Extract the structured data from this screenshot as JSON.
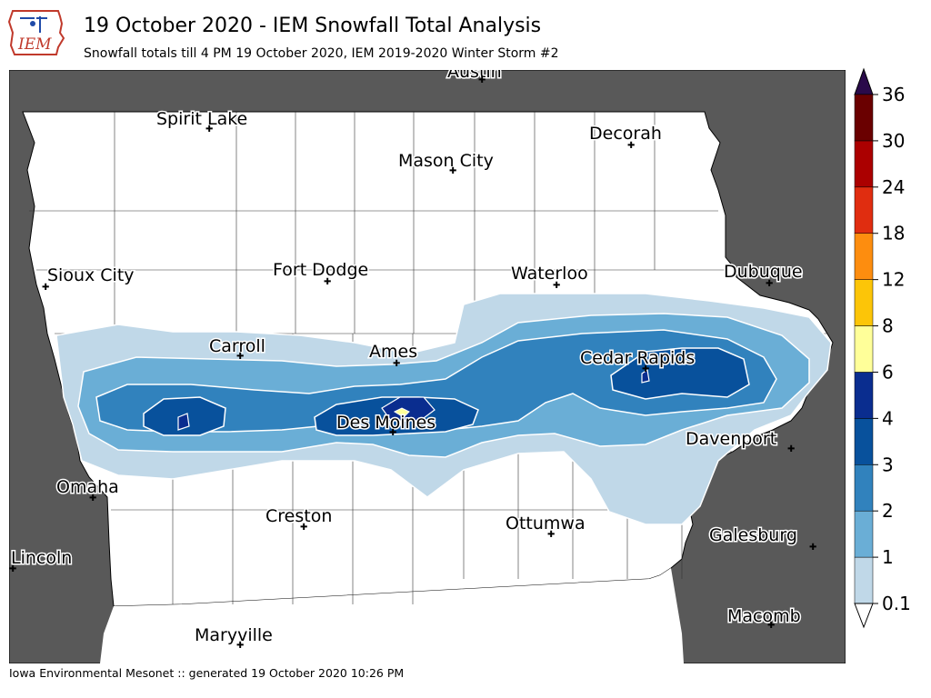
{
  "header": {
    "title": "19 October 2020 - IEM Snowfall Total Analysis",
    "subtitle": "Snowfall totals till 4 PM 19 October 2020, IEM 2019-2020 Winter Storm #2",
    "logo_text": "IEM"
  },
  "footer": {
    "text": "Iowa Environmental Mesonet :: generated 19 October 2020 10:26 PM"
  },
  "map": {
    "background_color": "#595959",
    "land_color": "#ffffff",
    "cities": [
      {
        "name": "Austin",
        "id": "austin"
      },
      {
        "name": "Spirit Lake",
        "id": "spirit-lake"
      },
      {
        "name": "Decorah",
        "id": "decorah"
      },
      {
        "name": "Mason City",
        "id": "mason-city"
      },
      {
        "name": "Sioux City",
        "id": "sioux-city"
      },
      {
        "name": "Fort Dodge",
        "id": "fort-dodge"
      },
      {
        "name": "Waterloo",
        "id": "waterloo"
      },
      {
        "name": "Dubuque",
        "id": "dubuque"
      },
      {
        "name": "Carroll",
        "id": "carroll"
      },
      {
        "name": "Ames",
        "id": "ames"
      },
      {
        "name": "Cedar Rapids",
        "id": "cedar-rapids"
      },
      {
        "name": "Des Moines",
        "id": "des-moines"
      },
      {
        "name": "Davenport",
        "id": "davenport"
      },
      {
        "name": "Omaha",
        "id": "omaha"
      },
      {
        "name": "Creston",
        "id": "creston"
      },
      {
        "name": "Ottumwa",
        "id": "ottumwa"
      },
      {
        "name": "Galesburg",
        "id": "galesburg"
      },
      {
        "name": "Lincoln",
        "id": "lincoln"
      },
      {
        "name": "Macomb",
        "id": "macomb"
      },
      {
        "name": "Maryville",
        "id": "maryville"
      }
    ]
  },
  "colorbar": {
    "labels": [
      "0.1",
      "1",
      "2",
      "3",
      "4",
      "6",
      "8",
      "12",
      "18",
      "24",
      "30",
      "36"
    ],
    "colors": [
      "#c0d8e8",
      "#6aaed6",
      "#3182bd",
      "#08519c",
      "#0a2d8f",
      "#ffff99",
      "#fcc508",
      "#fd8d0f",
      "#e02d10",
      "#ab0000",
      "#6a0000",
      "#2a0a4a"
    ]
  }
}
